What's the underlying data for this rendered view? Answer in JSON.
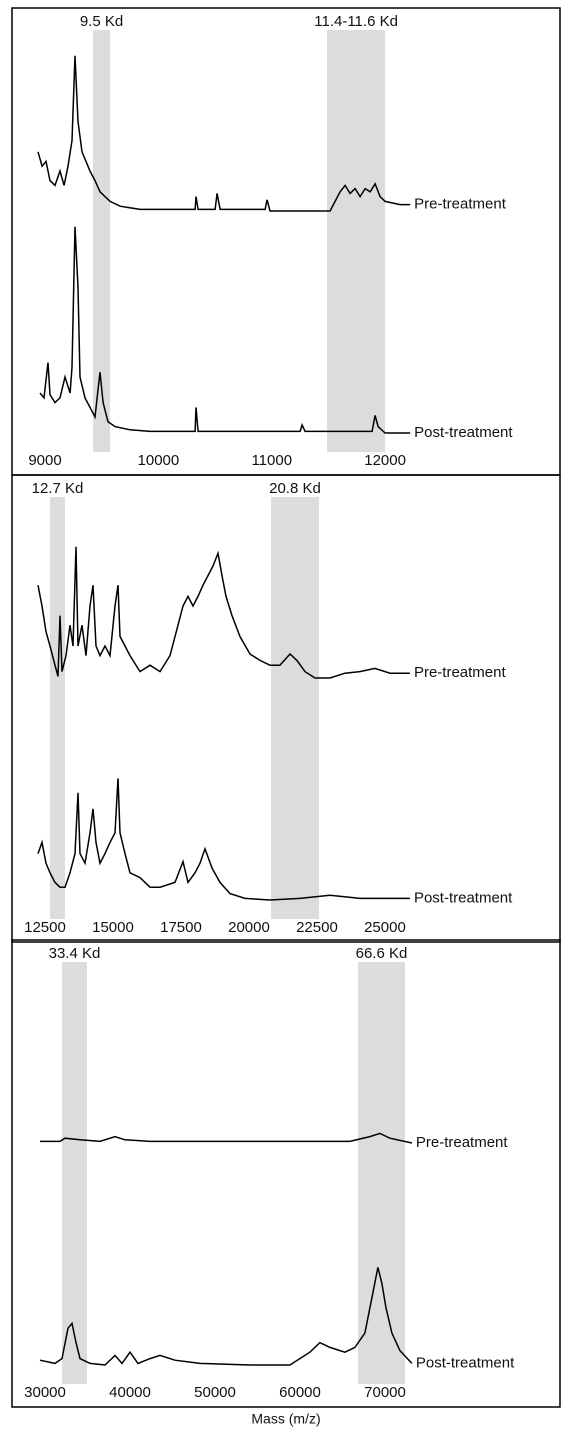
{
  "chart_data": [
    {
      "type": "line",
      "xlim": [
        8850,
        12290
      ],
      "ylim": [
        0,
        140
      ],
      "xticks": [
        9000,
        10000,
        11000,
        12000
      ],
      "bands": [
        {
          "label": "9.5 Kd",
          "xmin": 9424,
          "xmax": 9574
        },
        {
          "label": "11.4-11.6 Kd",
          "xmin": 11488,
          "xmax": 12000
        }
      ],
      "series": [
        {
          "name": "Pre-treatment",
          "color": "#000000",
          "x": [
            8938,
            8974,
            9009,
            9044,
            9088,
            9132,
            9168,
            9203,
            9238,
            9265,
            9291,
            9326,
            9362,
            9397,
            9441,
            9485,
            9574,
            9662,
            9838,
            10191,
            10324,
            10332,
            10350,
            10500,
            10518,
            10544,
            10941,
            10959,
            10985,
            11515,
            11559,
            11603,
            11647,
            11691,
            11735,
            11779,
            11824,
            11868,
            11912,
            11956,
            12000,
            12132,
            12221
          ],
          "values": [
            37,
            28,
            31,
            19,
            16,
            25,
            16,
            28,
            44,
            97,
            56,
            37,
            31,
            25,
            19,
            12,
            6,
            3,
            1,
            1,
            1,
            9,
            1,
            1,
            11,
            1,
            1,
            7,
            0,
            0,
            6,
            12,
            16,
            11,
            14,
            9,
            14,
            12,
            17,
            9,
            6,
            4,
            4
          ]
        },
        {
          "name": "Post-treatment",
          "color": "#000000",
          "x": [
            8956,
            8991,
            9026,
            9044,
            9088,
            9132,
            9176,
            9221,
            9238,
            9265,
            9291,
            9309,
            9353,
            9397,
            9441,
            9485,
            9512,
            9556,
            9618,
            9750,
            9926,
            10324,
            10332,
            10350,
            11250,
            11268,
            11294,
            11885,
            11912,
            11938,
            12000,
            12221
          ],
          "values": [
            25,
            22,
            44,
            24,
            19,
            22,
            35,
            25,
            41,
            129,
            91,
            35,
            22,
            16,
            10,
            38,
            19,
            7,
            4,
            2,
            1,
            1,
            16,
            1,
            1,
            5,
            1,
            1,
            11,
            4,
            0,
            0
          ]
        }
      ]
    },
    {
      "type": "line",
      "xlim": [
        11875,
        26215
      ],
      "ylim": [
        0,
        140
      ],
      "xticks": [
        12500,
        15000,
        17500,
        20000,
        22500,
        25000
      ],
      "bands": [
        {
          "label": "12.7 Kd",
          "xmin": 12684,
          "xmax": 13235
        },
        {
          "label": "20.8 Kd",
          "xmin": 20809,
          "xmax": 22574
        }
      ],
      "series": [
        {
          "name": "Pre-treatment",
          "color": "#000000",
          "x": [
            12243,
            12390,
            12537,
            12684,
            12868,
            12978,
            13051,
            13125,
            13272,
            13419,
            13529,
            13640,
            13713,
            13860,
            14007,
            14154,
            14265,
            14375,
            14522,
            14706,
            14890,
            15073,
            15184,
            15257,
            15441,
            15625,
            15993,
            16360,
            16728,
            17096,
            17390,
            17574,
            17757,
            17941,
            18125,
            18309,
            18493,
            18676,
            18860,
            19007,
            19154,
            19375,
            19668,
            20036,
            20404,
            20771,
            21139,
            21507,
            21764,
            22059,
            22426,
            22978,
            23529,
            24080,
            24632,
            25184,
            25919
          ],
          "values": [
            58,
            45,
            29,
            20,
            8,
            1,
            39,
            4,
            14,
            33,
            20,
            82,
            20,
            33,
            14,
            45,
            58,
            20,
            14,
            20,
            14,
            45,
            58,
            26,
            20,
            14,
            4,
            8,
            4,
            14,
            33,
            45,
            51,
            45,
            51,
            58,
            64,
            70,
            78,
            64,
            51,
            39,
            26,
            15,
            11,
            8,
            8,
            15,
            11,
            4,
            0,
            0,
            3,
            4,
            6,
            3,
            3
          ]
        },
        {
          "name": "Post-treatment",
          "color": "#000000",
          "x": [
            12243,
            12390,
            12537,
            12684,
            12868,
            13051,
            13235,
            13419,
            13603,
            13713,
            13787,
            13971,
            14154,
            14265,
            14375,
            14522,
            14706,
            14890,
            15073,
            15184,
            15257,
            15441,
            15625,
            15993,
            16360,
            16728,
            17279,
            17574,
            17757,
            18015,
            18199,
            18382,
            18640,
            18934,
            19301,
            19853,
            20772,
            21875,
            22978,
            24081,
            25919
          ],
          "values": [
            29,
            36,
            23,
            17,
            11,
            8,
            8,
            17,
            29,
            67,
            29,
            23,
            42,
            57,
            36,
            23,
            29,
            36,
            42,
            76,
            42,
            29,
            17,
            14,
            8,
            8,
            11,
            24,
            11,
            17,
            23,
            32,
            20,
            11,
            4,
            1,
            0,
            1,
            3,
            1,
            1
          ]
        }
      ]
    },
    {
      "type": "line",
      "xlim": [
        28000,
        73880
      ],
      "ylim": [
        0,
        140
      ],
      "xticks": [
        30000,
        40000,
        50000,
        60000,
        70000
      ],
      "xlabel": "Mass (m/z)",
      "bands": [
        {
          "label": "33.4 Kd",
          "xmin": 32000,
          "xmax": 34940
        },
        {
          "label": "66.6 Kd",
          "xmin": 66820,
          "xmax": 72350
        }
      ],
      "series": [
        {
          "name": "Pre-treatment",
          "color": "#000000",
          "x": [
            29412,
            31764,
            32352,
            34116,
            36468,
            38232,
            39408,
            42348,
            48228,
            54108,
            59988,
            65868,
            68220,
            69396,
            70572,
            73159
          ],
          "values": [
            1,
            1,
            3,
            2,
            1,
            4,
            2,
            1,
            1,
            1,
            1,
            1,
            4,
            6,
            3,
            0
          ]
        },
        {
          "name": "Post-treatment",
          "color": "#000000",
          "x": [
            29412,
            31176,
            31999,
            32705,
            33175,
            33646,
            34116,
            35292,
            37056,
            38232,
            39055,
            39996,
            40937,
            42348,
            43524,
            45288,
            48228,
            54108,
            58812,
            61164,
            62340,
            63516,
            65280,
            66456,
            67632,
            68455,
            69161,
            69631,
            70102,
            70807,
            71748,
            73159
          ],
          "values": [
            3,
            1,
            4,
            23,
            26,
            14,
            4,
            1,
            0,
            6,
            1,
            8,
            1,
            4,
            6,
            3,
            1,
            0,
            0,
            8,
            14,
            11,
            8,
            11,
            20,
            42,
            61,
            51,
            36,
            20,
            9,
            1
          ]
        }
      ]
    }
  ]
}
